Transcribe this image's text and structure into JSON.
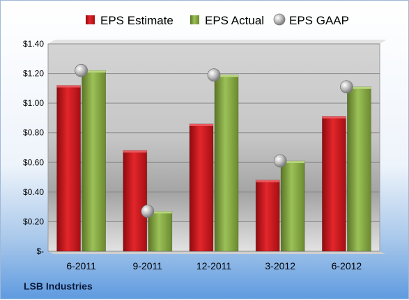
{
  "company": "LSB Industries",
  "chart_data": {
    "type": "bar",
    "categories": [
      "6-2011",
      "9-2011",
      "12-2011",
      "3-2012",
      "6-2012"
    ],
    "series": [
      {
        "name": "EPS Estimate",
        "kind": "bar",
        "color": "#c0161b",
        "values": [
          1.12,
          0.68,
          0.86,
          0.48,
          0.91
        ]
      },
      {
        "name": "EPS Actual",
        "kind": "bar",
        "color": "#7e9e3a",
        "values": [
          1.22,
          0.27,
          1.19,
          0.61,
          1.11
        ]
      },
      {
        "name": "EPS GAAP",
        "kind": "marker",
        "color": "#b9b9b9",
        "values": [
          1.22,
          0.27,
          1.19,
          0.61,
          1.11
        ]
      }
    ],
    "y_ticks": [
      "$-",
      "$0.20",
      "$0.40",
      "$0.60",
      "$0.80",
      "$1.00",
      "$1.20",
      "$1.40"
    ],
    "ylim": [
      0,
      1.4
    ],
    "y_step": 0.2,
    "grid": true,
    "legend_position": "top"
  }
}
